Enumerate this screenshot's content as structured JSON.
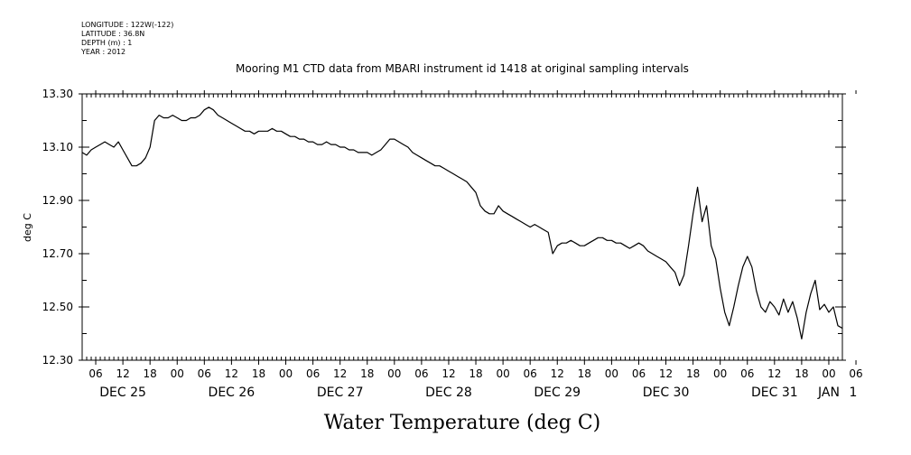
{
  "header": {
    "longitude": "LONGITUDE : 122W(-122)",
    "latitude": "LATITUDE : 36.8N",
    "depth": "DEPTH (m) : 1",
    "year": "YEAR : 2012"
  },
  "chart_data": {
    "type": "line",
    "title": "Mooring M1 CTD data from MBARI instrument id 1418 at original sampling intervals",
    "xlabel": "Water Temperature (deg C)",
    "ylabel": "deg C",
    "ylim": [
      12.3,
      13.3
    ],
    "yticks": [
      "13.30",
      "13.10",
      "12.90",
      "12.70",
      "12.50",
      "12.30"
    ],
    "x_unit": "hours since DEC 25 00:00",
    "xlim": [
      3,
      171
    ],
    "hour_ticks": [
      "06",
      "12",
      "18",
      "00",
      "06",
      "12",
      "18",
      "00",
      "06",
      "12",
      "18",
      "00",
      "06",
      "12",
      "18",
      "00",
      "06",
      "12",
      "18",
      "00",
      "06",
      "12",
      "18",
      "00",
      "06",
      "12",
      "18",
      "00",
      "06"
    ],
    "day_labels": [
      "DEC 25",
      "DEC 26",
      "DEC 27",
      "DEC 28",
      "DEC 29",
      "DEC 30",
      "DEC 31",
      "JAN",
      "1"
    ],
    "grid": false,
    "series": [
      {
        "points": [
          [
            3,
            13.08
          ],
          [
            4,
            13.07
          ],
          [
            5,
            13.09
          ],
          [
            6,
            13.1
          ],
          [
            7,
            13.11
          ],
          [
            8,
            13.12
          ],
          [
            9,
            13.11
          ],
          [
            10,
            13.1
          ],
          [
            11,
            13.12
          ],
          [
            12,
            13.09
          ],
          [
            13,
            13.06
          ],
          [
            14,
            13.03
          ],
          [
            15,
            13.03
          ],
          [
            16,
            13.04
          ],
          [
            17,
            13.06
          ],
          [
            18,
            13.1
          ],
          [
            19,
            13.2
          ],
          [
            20,
            13.22
          ],
          [
            21,
            13.21
          ],
          [
            22,
            13.21
          ],
          [
            23,
            13.22
          ],
          [
            24,
            13.21
          ],
          [
            25,
            13.2
          ],
          [
            26,
            13.2
          ],
          [
            27,
            13.21
          ],
          [
            28,
            13.21
          ],
          [
            29,
            13.22
          ],
          [
            30,
            13.24
          ],
          [
            31,
            13.25
          ],
          [
            32,
            13.24
          ],
          [
            33,
            13.22
          ],
          [
            34,
            13.21
          ],
          [
            35,
            13.2
          ],
          [
            36,
            13.19
          ],
          [
            37,
            13.18
          ],
          [
            38,
            13.17
          ],
          [
            39,
            13.16
          ],
          [
            40,
            13.16
          ],
          [
            41,
            13.15
          ],
          [
            42,
            13.16
          ],
          [
            43,
            13.16
          ],
          [
            44,
            13.16
          ],
          [
            45,
            13.17
          ],
          [
            46,
            13.16
          ],
          [
            47,
            13.16
          ],
          [
            48,
            13.15
          ],
          [
            49,
            13.14
          ],
          [
            50,
            13.14
          ],
          [
            51,
            13.13
          ],
          [
            52,
            13.13
          ],
          [
            53,
            13.12
          ],
          [
            54,
            13.12
          ],
          [
            55,
            13.11
          ],
          [
            56,
            13.11
          ],
          [
            57,
            13.12
          ],
          [
            58,
            13.11
          ],
          [
            59,
            13.11
          ],
          [
            60,
            13.1
          ],
          [
            61,
            13.1
          ],
          [
            62,
            13.09
          ],
          [
            63,
            13.09
          ],
          [
            64,
            13.08
          ],
          [
            65,
            13.08
          ],
          [
            66,
            13.08
          ],
          [
            67,
            13.07
          ],
          [
            68,
            13.08
          ],
          [
            69,
            13.09
          ],
          [
            70,
            13.11
          ],
          [
            71,
            13.13
          ],
          [
            72,
            13.13
          ],
          [
            73,
            13.12
          ],
          [
            74,
            13.11
          ],
          [
            75,
            13.1
          ],
          [
            76,
            13.08
          ],
          [
            77,
            13.07
          ],
          [
            78,
            13.06
          ],
          [
            79,
            13.05
          ],
          [
            80,
            13.04
          ],
          [
            81,
            13.03
          ],
          [
            82,
            13.03
          ],
          [
            83,
            13.02
          ],
          [
            84,
            13.01
          ],
          [
            85,
            13.0
          ],
          [
            86,
            12.99
          ],
          [
            87,
            12.98
          ],
          [
            88,
            12.97
          ],
          [
            89,
            12.95
          ],
          [
            90,
            12.93
          ],
          [
            91,
            12.88
          ],
          [
            92,
            12.86
          ],
          [
            93,
            12.85
          ],
          [
            94,
            12.85
          ],
          [
            95,
            12.88
          ],
          [
            96,
            12.86
          ],
          [
            97,
            12.85
          ],
          [
            98,
            12.84
          ],
          [
            99,
            12.83
          ],
          [
            100,
            12.82
          ],
          [
            101,
            12.81
          ],
          [
            102,
            12.8
          ],
          [
            103,
            12.81
          ],
          [
            104,
            12.8
          ],
          [
            105,
            12.79
          ],
          [
            106,
            12.78
          ],
          [
            107,
            12.7
          ],
          [
            108,
            12.73
          ],
          [
            109,
            12.74
          ],
          [
            110,
            12.74
          ],
          [
            111,
            12.75
          ],
          [
            112,
            12.74
          ],
          [
            113,
            12.73
          ],
          [
            114,
            12.73
          ],
          [
            115,
            12.74
          ],
          [
            116,
            12.75
          ],
          [
            117,
            12.76
          ],
          [
            118,
            12.76
          ],
          [
            119,
            12.75
          ],
          [
            120,
            12.75
          ],
          [
            121,
            12.74
          ],
          [
            122,
            12.74
          ],
          [
            123,
            12.73
          ],
          [
            124,
            12.72
          ],
          [
            125,
            12.73
          ],
          [
            126,
            12.74
          ],
          [
            127,
            12.73
          ],
          [
            128,
            12.71
          ],
          [
            129,
            12.7
          ],
          [
            130,
            12.69
          ],
          [
            131,
            12.68
          ],
          [
            132,
            12.67
          ],
          [
            133,
            12.65
          ],
          [
            134,
            12.63
          ],
          [
            135,
            12.58
          ],
          [
            136,
            12.62
          ],
          [
            137,
            12.73
          ],
          [
            138,
            12.85
          ],
          [
            139,
            12.95
          ],
          [
            140,
            12.82
          ],
          [
            141,
            12.88
          ],
          [
            142,
            12.73
          ],
          [
            143,
            12.68
          ],
          [
            144,
            12.57
          ],
          [
            145,
            12.48
          ],
          [
            146,
            12.43
          ],
          [
            147,
            12.5
          ],
          [
            148,
            12.58
          ],
          [
            149,
            12.65
          ],
          [
            150,
            12.69
          ],
          [
            151,
            12.65
          ],
          [
            152,
            12.56
          ],
          [
            153,
            12.5
          ],
          [
            154,
            12.48
          ],
          [
            155,
            12.52
          ],
          [
            156,
            12.5
          ],
          [
            157,
            12.47
          ],
          [
            158,
            12.53
          ],
          [
            159,
            12.48
          ],
          [
            160,
            12.52
          ],
          [
            161,
            12.46
          ],
          [
            162,
            12.38
          ],
          [
            163,
            12.48
          ],
          [
            164,
            12.55
          ],
          [
            165,
            12.6
          ],
          [
            166,
            12.49
          ],
          [
            167,
            12.51
          ],
          [
            168,
            12.48
          ],
          [
            169,
            12.5
          ],
          [
            170,
            12.43
          ],
          [
            171,
            12.42
          ]
        ]
      }
    ]
  }
}
